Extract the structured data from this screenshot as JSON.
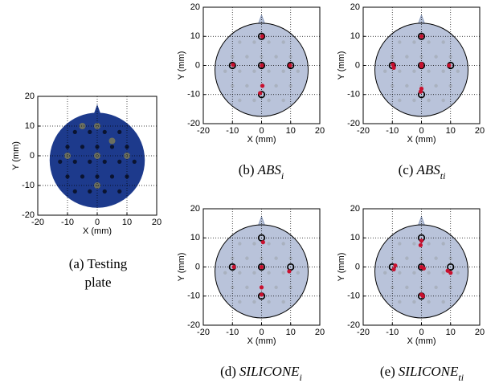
{
  "chart_data": [
    {
      "type": "image",
      "caption": [
        "(a) Testing",
        "plate"
      ],
      "xlabel": "X (mm)",
      "ylabel": "Y (mm)",
      "xlim": [
        -20,
        20
      ],
      "ylim": [
        -20,
        20
      ],
      "xticks": [
        -20,
        -10,
        0,
        10,
        20
      ],
      "yticks": [
        -20,
        -10,
        0,
        10,
        20
      ],
      "grid": true,
      "plate_color": "#1d3a8c"
    },
    {
      "type": "scatter",
      "caption": {
        "label": "(b)",
        "main": "ABS",
        "sub": "i"
      },
      "xlabel": "X (mm)",
      "ylabel": "Y (mm)",
      "xlim": [
        -20,
        20
      ],
      "ylim": [
        -20,
        20
      ],
      "xticks": [
        -20,
        -10,
        0,
        10,
        20
      ],
      "yticks": [
        -20,
        -10,
        0,
        10,
        20
      ],
      "grid": true,
      "plate_color": "#b9c3da",
      "series": [
        {
          "color": "#000000",
          "marker": "ring",
          "x": [
            0,
            -10,
            0,
            10,
            0
          ],
          "y": [
            10,
            0,
            0,
            0,
            -10
          ]
        },
        {
          "color": "#c8102e",
          "marker": "dot",
          "x": [
            0.2,
            -9.8,
            0.1,
            9.8,
            -0.5,
            0.3
          ],
          "y": [
            10,
            0.2,
            0,
            0,
            -9.5,
            -7
          ]
        }
      ]
    },
    {
      "type": "scatter",
      "caption": {
        "label": "(c)",
        "main": "ABS",
        "sub": "ti"
      },
      "xlabel": "X (mm)",
      "ylabel": "Y (mm)",
      "xlim": [
        -20,
        20
      ],
      "ylim": [
        -20,
        20
      ],
      "xticks": [
        -20,
        -10,
        0,
        10,
        20
      ],
      "yticks": [
        -20,
        -10,
        0,
        10,
        20
      ],
      "grid": true,
      "plate_color": "#b9c3da",
      "series": [
        {
          "color": "#000000",
          "marker": "ring",
          "x": [
            0,
            -10,
            0,
            10,
            0
          ],
          "y": [
            10,
            0,
            0,
            0,
            -10
          ]
        },
        {
          "color": "#c8102e",
          "marker": "dot",
          "x": [
            0,
            -9.8,
            -9.5,
            0,
            0,
            9.5,
            0,
            -0.3
          ],
          "y": [
            10,
            0.3,
            -0.8,
            0.5,
            -0.3,
            0,
            -8,
            -9
          ]
        }
      ]
    },
    {
      "type": "scatter",
      "caption": {
        "label": "(d)",
        "main": "SILICONE",
        "sub": "i"
      },
      "xlabel": "X (mm)",
      "ylabel": "Y (mm)",
      "xlim": [
        -20,
        20
      ],
      "ylim": [
        -20,
        20
      ],
      "xticks": [
        -20,
        -10,
        0,
        10,
        20
      ],
      "yticks": [
        -20,
        -10,
        0,
        10,
        20
      ],
      "grid": true,
      "plate_color": "#b9c3da",
      "series": [
        {
          "color": "#000000",
          "marker": "ring",
          "x": [
            0,
            -10,
            0,
            10,
            0
          ],
          "y": [
            10,
            0,
            0,
            0,
            -10
          ]
        },
        {
          "color": "#c8102e",
          "marker": "dot",
          "x": [
            0.5,
            -9.5,
            0,
            9.5,
            0,
            0
          ],
          "y": [
            8.5,
            0,
            0,
            -1.5,
            -9.5,
            -7
          ]
        }
      ]
    },
    {
      "type": "scatter",
      "caption": {
        "label": "(e)",
        "main": "SILICONE",
        "sub": "ti"
      },
      "xlabel": "X (mm)",
      "ylabel": "Y (mm)",
      "xlim": [
        -20,
        20
      ],
      "ylim": [
        -20,
        20
      ],
      "xticks": [
        -20,
        -10,
        0,
        10,
        20
      ],
      "yticks": [
        -20,
        -10,
        0,
        10,
        20
      ],
      "grid": true,
      "plate_color": "#b9c3da",
      "series": [
        {
          "color": "#000000",
          "marker": "ring",
          "x": [
            0,
            -10,
            0,
            10,
            0
          ],
          "y": [
            10,
            0,
            0,
            0,
            -10
          ]
        },
        {
          "color": "#c8102e",
          "marker": "dot",
          "x": [
            0,
            -0.3,
            -9,
            -9.5,
            0,
            0.8,
            9,
            10,
            0,
            0.5
          ],
          "y": [
            9,
            7.5,
            0.5,
            -0.8,
            0,
            -0.5,
            -1.3,
            -2,
            -9.5,
            -10
          ]
        }
      ]
    }
  ]
}
